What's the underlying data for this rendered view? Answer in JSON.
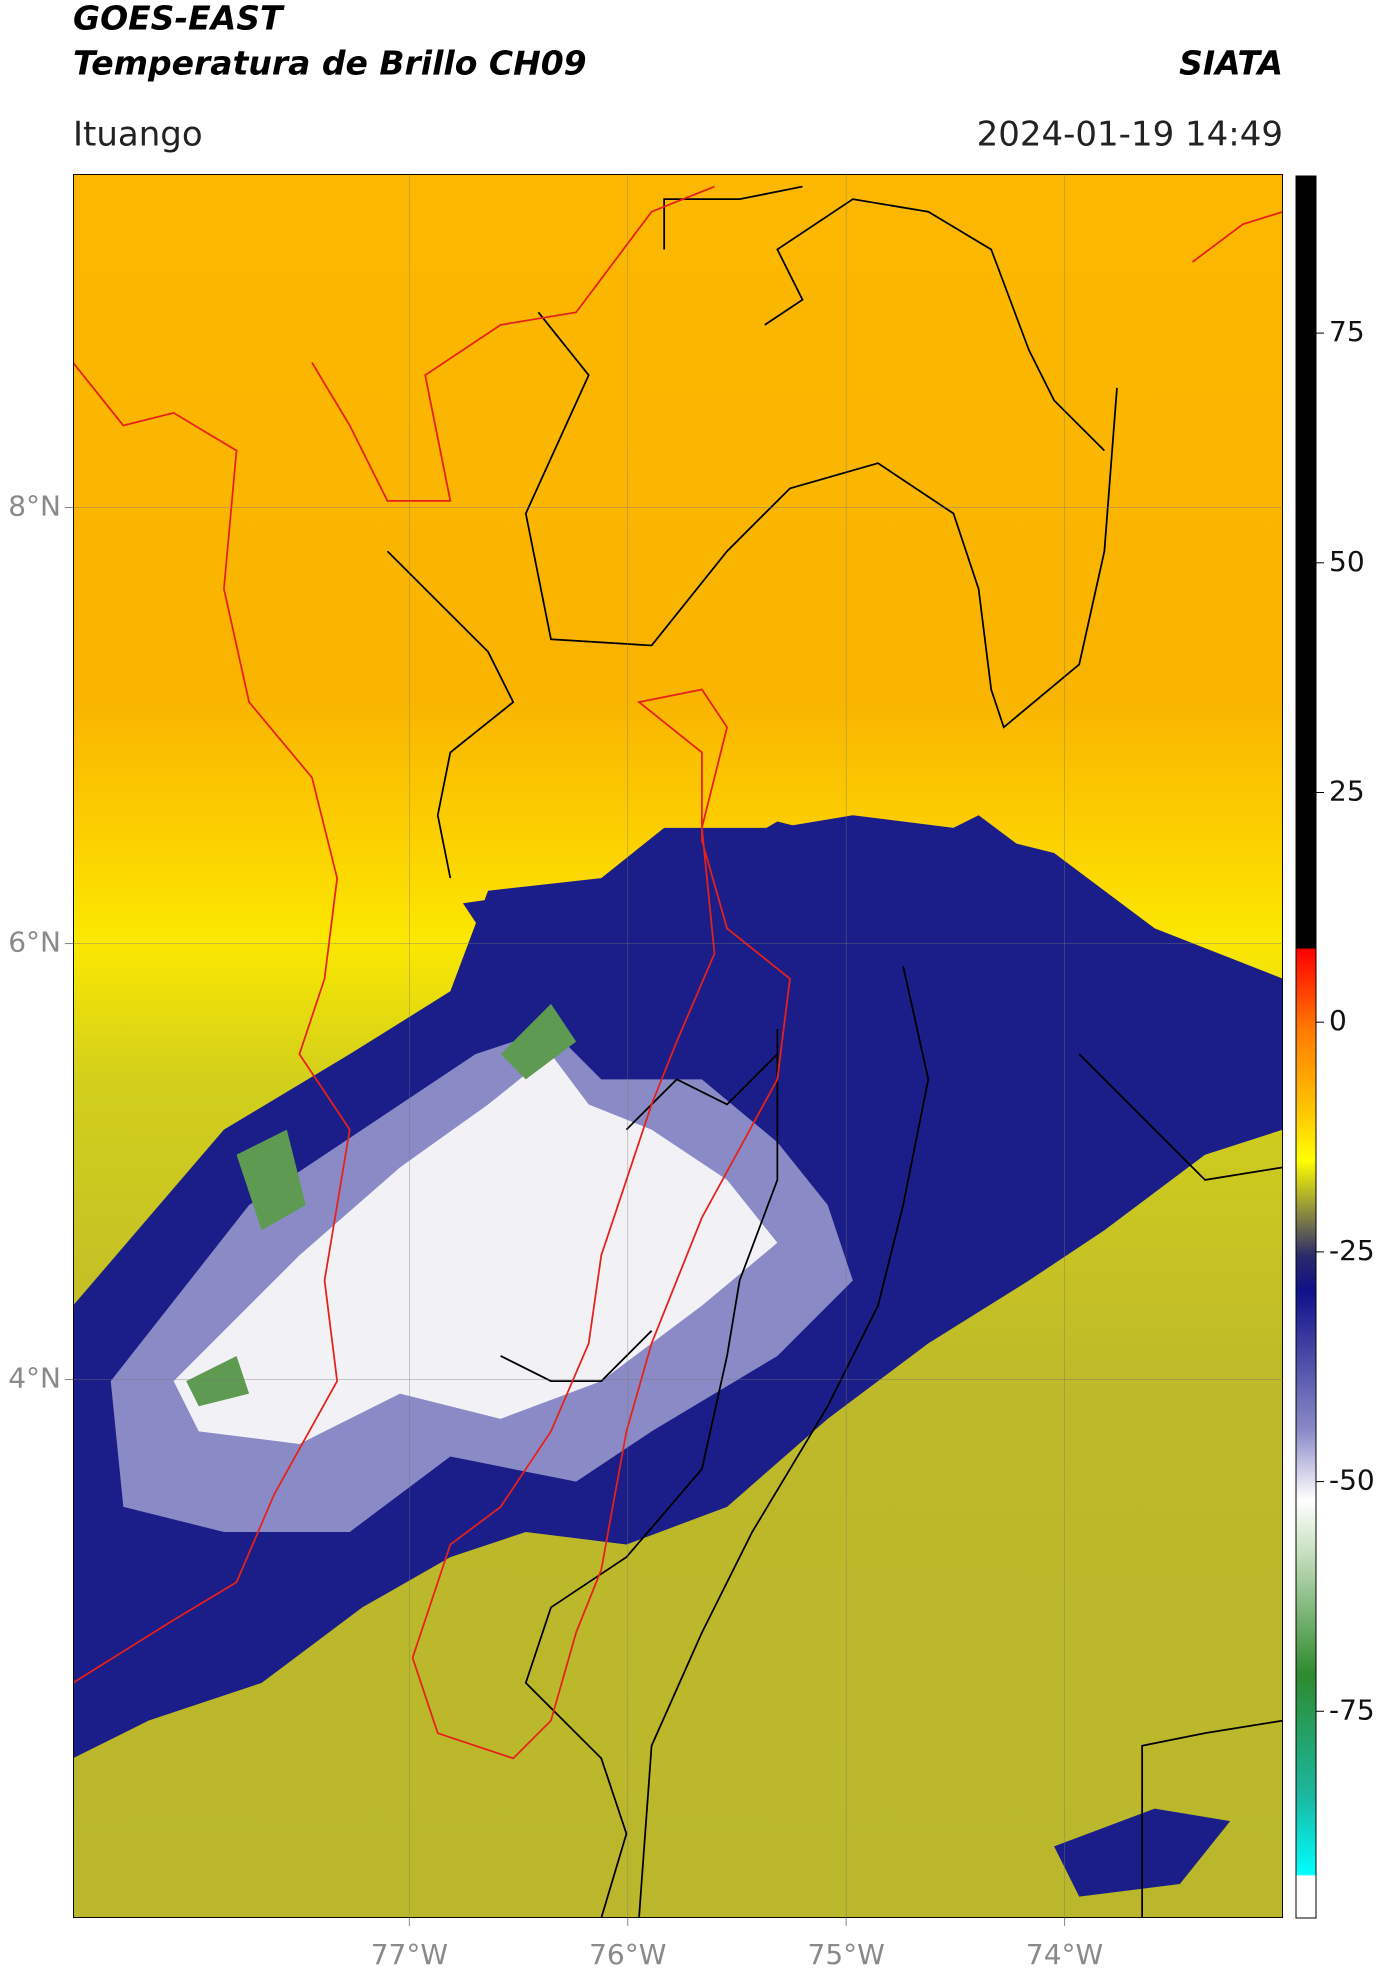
{
  "header": {
    "title": "GOES-EAST",
    "subtitle": "Temperatura de Brillo CH09",
    "source": "SIATA",
    "location": "Ituango",
    "datetime": "2024-01-19 14:49"
  },
  "map": {
    "xlim": [
      -78.54,
      -73.0
    ],
    "ylim": [
      1.53,
      9.53
    ],
    "xticks": [
      {
        "value": -77,
        "label": "77°W"
      },
      {
        "value": -76,
        "label": "76°W"
      },
      {
        "value": -75,
        "label": "75°W"
      },
      {
        "value": -74,
        "label": "74°W"
      }
    ],
    "yticks": [
      {
        "value": 8,
        "label": "8°N"
      },
      {
        "value": 6,
        "label": "6°N"
      },
      {
        "value": 4,
        "label": "4°N"
      }
    ],
    "grid": true
  },
  "colorbar": {
    "lim": [
      -97.5,
      92.1
    ],
    "ticks": [
      75,
      50,
      25,
      0,
      -25,
      -50,
      -75
    ]
  }
}
